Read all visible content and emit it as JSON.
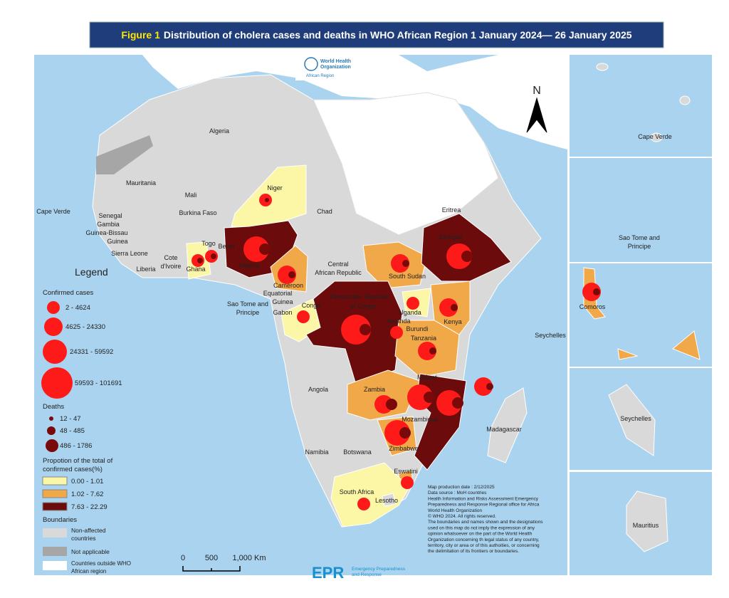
{
  "title": {
    "label": "Figure 1",
    "text": "Distribution of cholera cases and deaths in WHO African Region 1 January 2024— 26 January 2025"
  },
  "logo": {
    "line1": "World Health",
    "line2": "Organization",
    "region": "African Region"
  },
  "north": "N",
  "map": {
    "labels": [
      "Algeria",
      "Mauritania",
      "Mali",
      "Niger",
      "Chad",
      "Cape Verde",
      "Senegal",
      "Gambia",
      "Guinea-Bissau",
      "Guinea",
      "Sierra Leone",
      "Liberia",
      "Cote",
      "d'Ivoire",
      "Burkina Faso",
      "Togo",
      "Benin",
      "Ghana",
      "Nigeria",
      "Cameroon",
      "Central",
      "African Republic",
      "Eritrea",
      "Ethiopia",
      "South Sudan",
      "Equatorial",
      "Guinea",
      "Sao Tome and",
      "Principe",
      "Gabon",
      "Congo",
      "Democratic Republic",
      "of Congo",
      "Uganda",
      "Rwanda",
      "Burundi",
      "Kenya",
      "Tanzania",
      "Seychelles",
      "Malawi",
      "Zambia",
      "Angola",
      "Mozambique",
      "Madagascar",
      "Zimbabwe",
      "Namibia",
      "Botswana",
      "Eswatini",
      "South Africa",
      "Lesotho"
    ]
  },
  "insets": [
    "Cape Verde",
    "Sao Tome and",
    "Principe",
    "Comoros",
    "Seychelles",
    "Mauritius"
  ],
  "legend": {
    "title": "Legend",
    "cases_title": "Confirmed cases",
    "cases": [
      "2 - 4624",
      "4625 - 24330",
      "24331 - 59592",
      "59593 - 101691"
    ],
    "deaths_title": "Deaths",
    "deaths": [
      "12 - 47",
      "48 - 485",
      "486 - 1786"
    ],
    "prop_title": [
      "Propotion of the total of",
      "confirmed cases(%)"
    ],
    "prop": [
      "0.00 - 1.01",
      "1.02 - 7.62",
      "7.63 - 22.29"
    ],
    "bound_title": "Boundaries",
    "bounds": [
      [
        "Non-affected",
        "countries"
      ],
      [
        "Not applicable"
      ],
      [
        "Countries outside WHO",
        "African region"
      ]
    ]
  },
  "scale": [
    "0",
    "500",
    "1,000 Km"
  ],
  "notes": [
    "Map production date : 2/12/2025",
    "Data source : MoH countries",
    "Health Information and Risks Assessment Emergency",
    "Preparedness and Response Regional office for Africa",
    "World Health Organization",
    "© WHO 2024. All rights reserved.",
    "The boundaries and names shown and the designations",
    "used on this map do not imply the expression of any",
    "opinion whatsoever on the part of the World Health",
    "Organization concerning th legal status of any country,",
    "territory, city or area or of this authoities, or concerning",
    "the delimitation of its frontiers or boundaries."
  ],
  "footer": {
    "logo": "EPR",
    "line1": "Emergency Preparedness",
    "line2": "and Response"
  }
}
